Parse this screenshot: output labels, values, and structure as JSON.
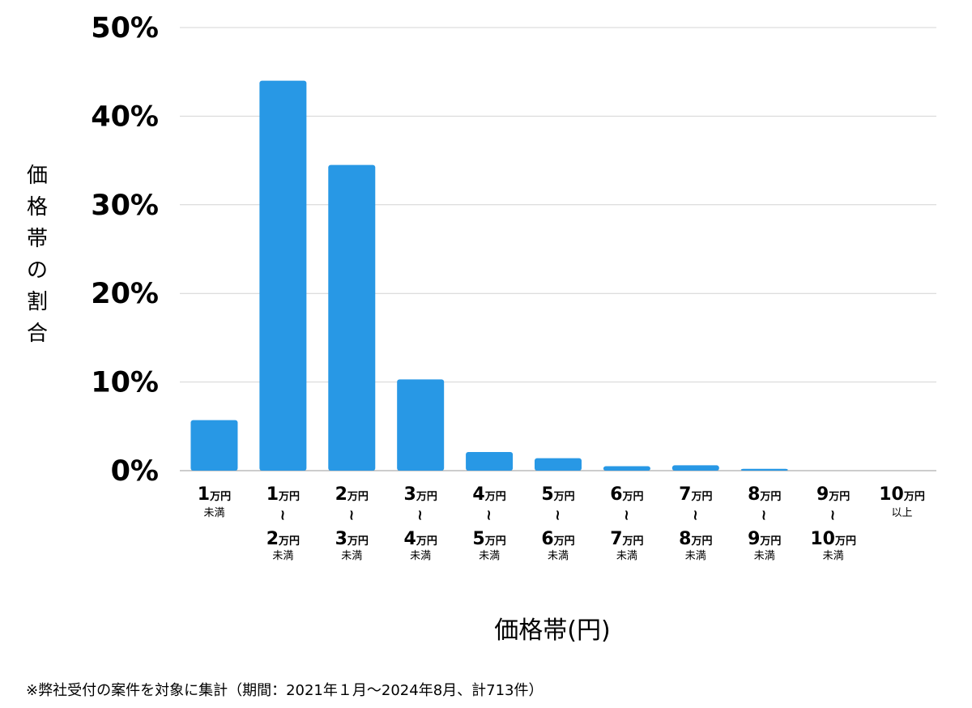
{
  "chart_data": {
    "type": "bar",
    "ylabel": "価格帯の割合",
    "xlabel": "価格帯(円)",
    "ylim": [
      0,
      50
    ],
    "yticks": [
      "0%",
      "10%",
      "20%",
      "30%",
      "40%",
      "50%"
    ],
    "grid": true,
    "bar_color": "#2898e5",
    "categories": [
      {
        "from": "1",
        "from_unit": "万円",
        "to": "",
        "to_unit": "",
        "suffix": "未満"
      },
      {
        "from": "1",
        "from_unit": "万円",
        "to": "2",
        "to_unit": "万円",
        "suffix": "未満"
      },
      {
        "from": "2",
        "from_unit": "万円",
        "to": "3",
        "to_unit": "万円",
        "suffix": "未満"
      },
      {
        "from": "3",
        "from_unit": "万円",
        "to": "4",
        "to_unit": "万円",
        "suffix": "未満"
      },
      {
        "from": "4",
        "from_unit": "万円",
        "to": "5",
        "to_unit": "万円",
        "suffix": "未満"
      },
      {
        "from": "5",
        "from_unit": "万円",
        "to": "6",
        "to_unit": "万円",
        "suffix": "未満"
      },
      {
        "from": "6",
        "from_unit": "万円",
        "to": "7",
        "to_unit": "万円",
        "suffix": "未満"
      },
      {
        "from": "7",
        "from_unit": "万円",
        "to": "8",
        "to_unit": "万円",
        "suffix": "未満"
      },
      {
        "from": "8",
        "from_unit": "万円",
        "to": "9",
        "to_unit": "万円",
        "suffix": "未満"
      },
      {
        "from": "9",
        "from_unit": "万円",
        "to": "10",
        "to_unit": "万円",
        "suffix": "未満"
      },
      {
        "from": "10",
        "from_unit": "万円",
        "to": "",
        "to_unit": "",
        "suffix": "以上"
      }
    ],
    "range_separator": "~",
    "values": [
      5.7,
      44.0,
      34.5,
      10.3,
      2.1,
      1.4,
      0.5,
      0.6,
      0.2,
      0.0,
      0.0
    ]
  },
  "footnote": "※弊社受付の案件を対象に集計（期間：2021年１月～2024年8月、計713件）"
}
